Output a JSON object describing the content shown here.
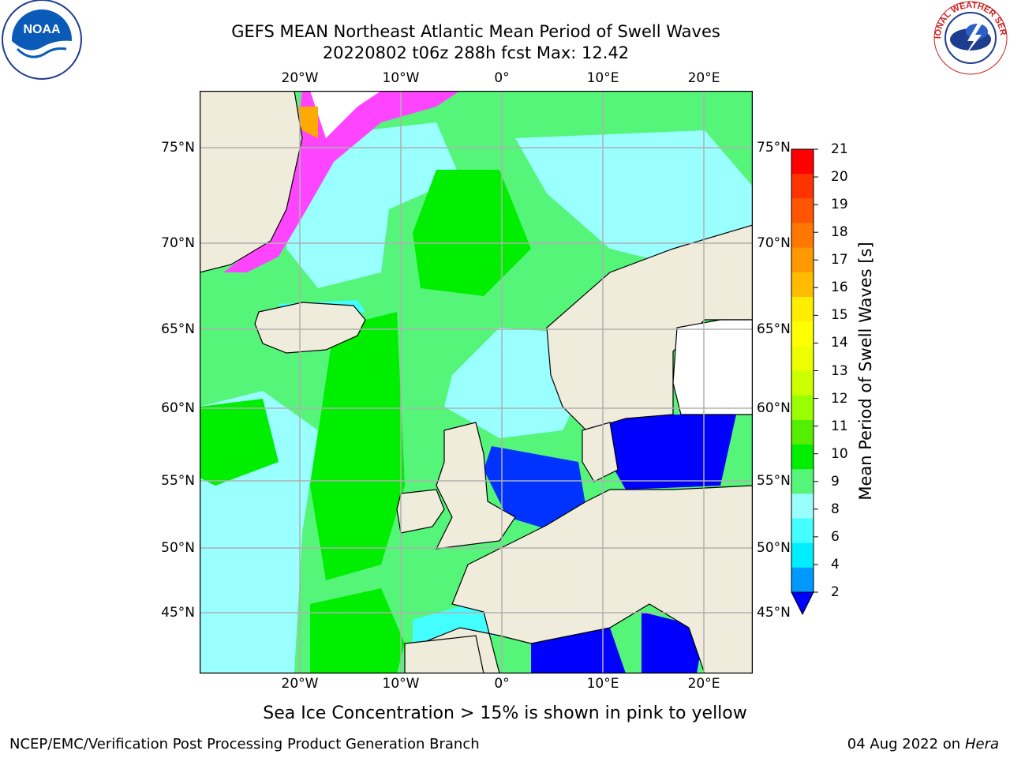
{
  "title_line1": "GEFS MEAN Northeast Atlantic Mean Period of Swell Waves",
  "title_line2": "20220802 t06z 288h fcst   Max: 12.42",
  "logos": {
    "left": "NOAA",
    "right": "NATIONAL WEATHER SERVICE"
  },
  "map": {
    "lon_ticks_top": [
      "20°W",
      "10°W",
      "0°",
      "10°E",
      "20°E"
    ],
    "lon_ticks_bottom": [
      "20°W",
      "10°W",
      "0°",
      "10°E",
      "20°E"
    ],
    "lat_ticks_left": [
      "75°N",
      "70°N",
      "65°N",
      "60°N",
      "55°N",
      "50°N",
      "45°N"
    ],
    "lat_ticks_right": [
      "75°N",
      "70°N",
      "65°N",
      "60°N",
      "55°N",
      "50°N",
      "45°N"
    ],
    "colors": {
      "land": "#efecdc",
      "coast": "#000000",
      "grid": "#b0b0b0"
    }
  },
  "colorbar": {
    "label": "Mean Period of Swell Waves [s]",
    "ticks": [
      "21",
      "20",
      "19",
      "18",
      "17",
      "16",
      "15",
      "14",
      "13",
      "12",
      "11",
      "10",
      "9",
      "8",
      "6",
      "4",
      "2"
    ],
    "colors": [
      "#ff0000",
      "#ff3300",
      "#ff5500",
      "#ff7700",
      "#ff9900",
      "#ffbb00",
      "#ffee00",
      "#ffff00",
      "#eeff00",
      "#ccff00",
      "#99ff00",
      "#55ee00",
      "#00ee00",
      "#55f57a",
      "#99ffff",
      "#44ffff",
      "#00eeff",
      "#0099ff",
      "#0000ff"
    ]
  },
  "caption": "Sea Ice Concentration > 15% is shown in pink to yellow",
  "footer_left": "NCEP/EMC/Verification Post Processing Product Generation Branch",
  "footer_right_date": "04 Aug 2022 on",
  "footer_right_host": "Hera"
}
